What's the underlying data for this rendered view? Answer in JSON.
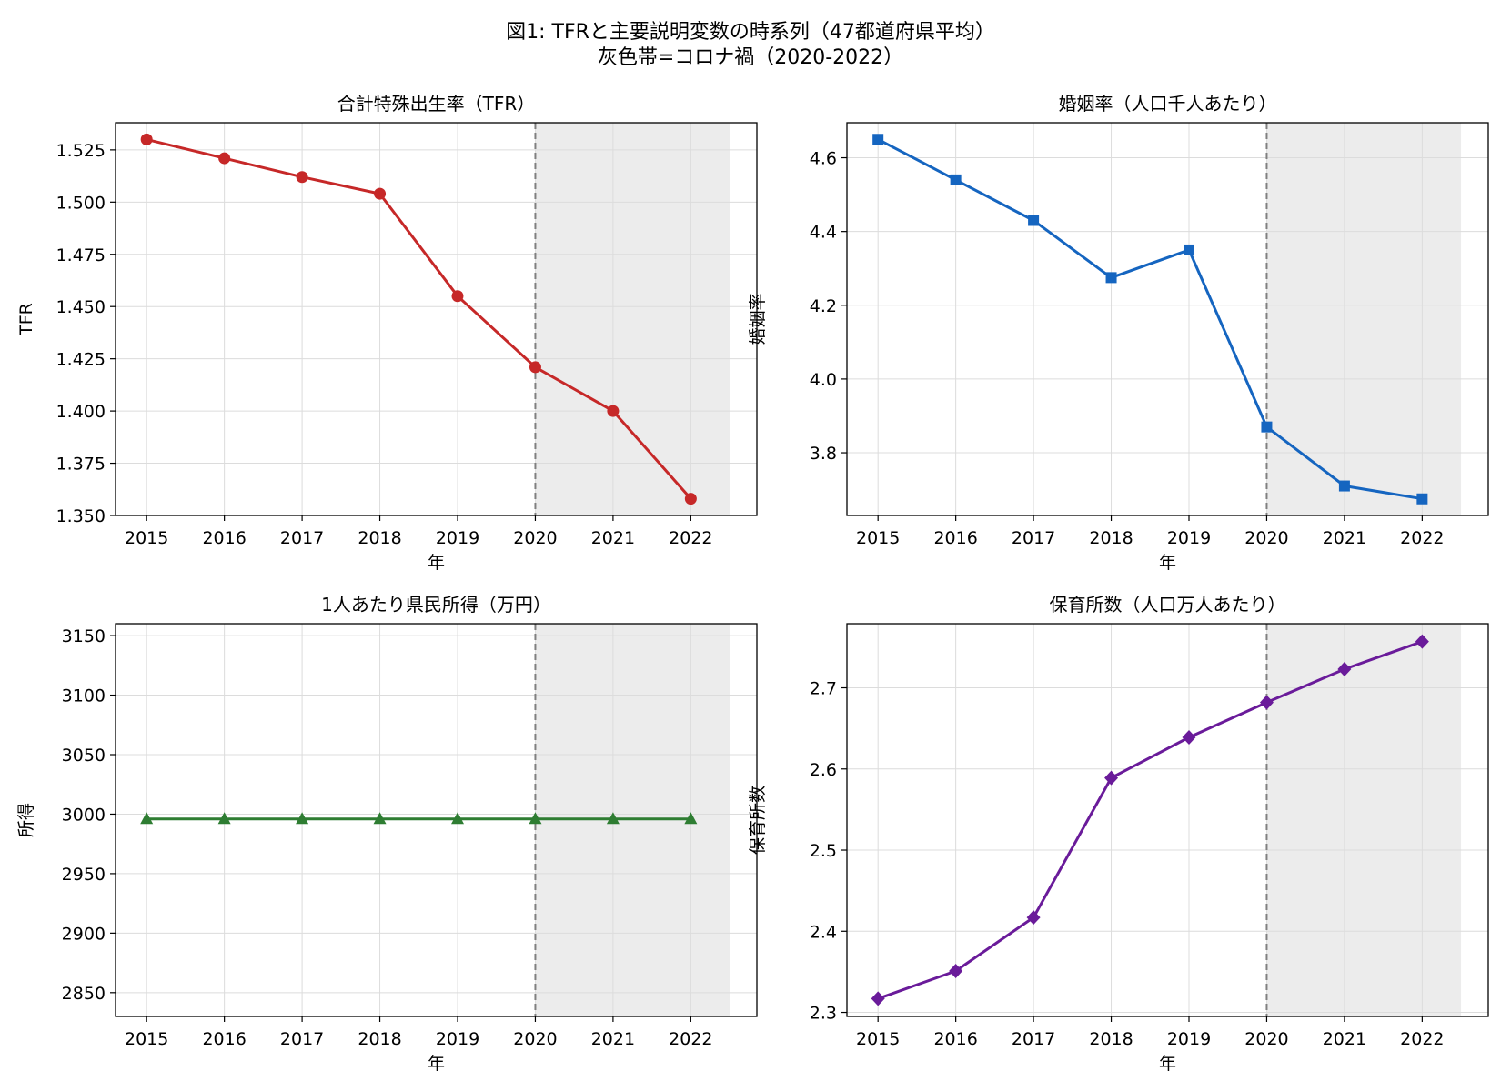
{
  "figure": {
    "title_line1": "図1: TFRと主要説明変数の時系列（47都道府県平均）",
    "title_line2": "灰色帯=コロナ禍（2020-2022）"
  },
  "chart_data": [
    {
      "type": "line",
      "title": "合計特殊出生率（TFR）",
      "xlabel": "年",
      "ylabel": "TFR",
      "x": [
        2015,
        2016,
        2017,
        2018,
        2019,
        2020,
        2021,
        2022
      ],
      "series": [
        {
          "values": [
            1.53,
            1.521,
            1.512,
            1.504,
            1.455,
            1.421,
            1.4,
            1.358
          ]
        }
      ],
      "ylim": [
        1.35,
        1.538
      ],
      "yticks": [
        1.35,
        1.375,
        1.4,
        1.425,
        1.45,
        1.475,
        1.5,
        1.525
      ],
      "ytick_labels": [
        "1.350",
        "1.375",
        "1.400",
        "1.425",
        "1.450",
        "1.475",
        "1.500",
        "1.525"
      ],
      "xlim": [
        2014.6,
        2022.85
      ],
      "color": "#c62828",
      "marker": "circle",
      "grid": true,
      "shaded_range": [
        2020,
        2022.5
      ],
      "vline": 2020
    },
    {
      "type": "line",
      "title": "婚姻率（人口千人あたり）",
      "xlabel": "年",
      "ylabel": "婚姻率",
      "x": [
        2015,
        2016,
        2017,
        2018,
        2019,
        2020,
        2021,
        2022
      ],
      "series": [
        {
          "values": [
            4.65,
            4.54,
            4.43,
            4.275,
            4.35,
            3.87,
            3.71,
            3.675
          ]
        }
      ],
      "ylim": [
        3.63,
        4.695
      ],
      "yticks": [
        3.8,
        4.0,
        4.2,
        4.4,
        4.6
      ],
      "ytick_labels": [
        "3.8",
        "4.0",
        "4.2",
        "4.4",
        "4.6"
      ],
      "xlim": [
        2014.6,
        2022.85
      ],
      "color": "#1565c0",
      "marker": "square",
      "grid": true,
      "shaded_range": [
        2020,
        2022.5
      ],
      "vline": 2020
    },
    {
      "type": "line",
      "title": "1人あたり県民所得（万円）",
      "xlabel": "年",
      "ylabel": "所得",
      "x": [
        2015,
        2016,
        2017,
        2018,
        2019,
        2020,
        2021,
        2022
      ],
      "series": [
        {
          "values": [
            2996,
            2996,
            2996,
            2996,
            2996,
            2996,
            2996,
            2996
          ]
        }
      ],
      "ylim": [
        2830,
        3160
      ],
      "yticks": [
        2850,
        2900,
        2950,
        3000,
        3050,
        3100,
        3150
      ],
      "ytick_labels": [
        "2850",
        "2900",
        "2950",
        "3000",
        "3050",
        "3100",
        "3150"
      ],
      "xlim": [
        2014.6,
        2022.85
      ],
      "color": "#2e7d32",
      "marker": "triangle",
      "grid": true,
      "shaded_range": [
        2020,
        2022.5
      ],
      "vline": 2020
    },
    {
      "type": "line",
      "title": "保育所数（人口万人あたり）",
      "xlabel": "年",
      "ylabel": "保育所数",
      "x": [
        2015,
        2016,
        2017,
        2018,
        2019,
        2020,
        2021,
        2022
      ],
      "series": [
        {
          "values": [
            2.317,
            2.351,
            2.417,
            2.589,
            2.639,
            2.682,
            2.723,
            2.757
          ]
        }
      ],
      "ylim": [
        2.295,
        2.779
      ],
      "yticks": [
        2.3,
        2.4,
        2.5,
        2.6,
        2.7
      ],
      "ytick_labels": [
        "2.3",
        "2.4",
        "2.5",
        "2.6",
        "2.7"
      ],
      "xlim": [
        2014.6,
        2022.85
      ],
      "color": "#6a1b9a",
      "marker": "diamond",
      "grid": true,
      "shaded_range": [
        2020,
        2022.5
      ],
      "vline": 2020
    }
  ]
}
